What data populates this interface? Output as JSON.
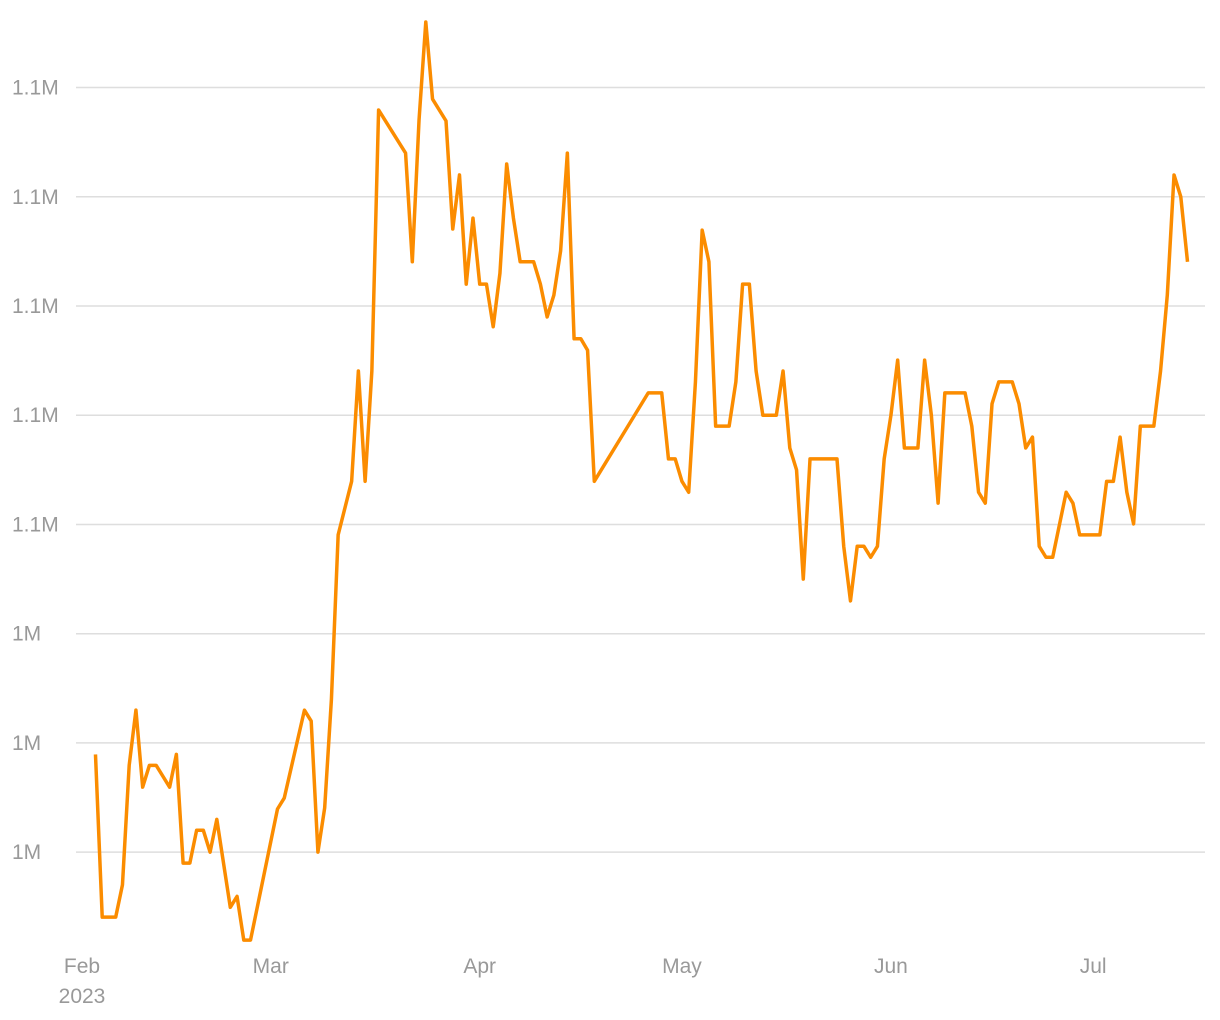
{
  "chart_data": {
    "type": "line",
    "grid": true,
    "ylim": [
      983000,
      1154200
    ],
    "yticks": [
      {
        "value": 1000000,
        "label": "1M"
      },
      {
        "value": 1020000,
        "label": "1M"
      },
      {
        "value": 1040000,
        "label": "1M"
      },
      {
        "value": 1060000,
        "label": "1.1M"
      },
      {
        "value": 1080000,
        "label": "1.1M"
      },
      {
        "value": 1100000,
        "label": "1.1M"
      },
      {
        "value": 1120000,
        "label": "1.1M"
      },
      {
        "value": 1140000,
        "label": "1.1M"
      }
    ],
    "xlim": [
      "2023-02-01",
      "2023-07-17"
    ],
    "xticks": [
      {
        "value": "2023-02-01",
        "label": "Feb",
        "sublabel": "2023"
      },
      {
        "value": "2023-03-01",
        "label": "Mar"
      },
      {
        "value": "2023-04-01",
        "label": "Apr"
      },
      {
        "value": "2023-05-01",
        "label": "May"
      },
      {
        "value": "2023-06-01",
        "label": "Jun"
      },
      {
        "value": "2023-07-01",
        "label": "Jul"
      }
    ],
    "x": [
      "2023-02-03",
      "2023-02-04",
      "2023-02-06",
      "2023-02-07",
      "2023-02-08",
      "2023-02-09",
      "2023-02-10",
      "2023-02-11",
      "2023-02-12",
      "2023-02-13",
      "2023-02-14",
      "2023-02-15",
      "2023-02-16",
      "2023-02-17",
      "2023-02-18",
      "2023-02-19",
      "2023-02-20",
      "2023-02-21",
      "2023-02-23",
      "2023-02-24",
      "2023-02-25",
      "2023-02-26",
      "2023-03-02",
      "2023-03-03",
      "2023-03-06",
      "2023-03-07",
      "2023-03-08",
      "2023-03-09",
      "2023-03-10",
      "2023-03-11",
      "2023-03-13",
      "2023-03-14",
      "2023-03-15",
      "2023-03-16",
      "2023-03-17",
      "2023-03-21",
      "2023-03-22",
      "2023-03-23",
      "2023-03-24",
      "2023-03-25",
      "2023-03-27",
      "2023-03-28",
      "2023-03-29",
      "2023-03-30",
      "2023-03-31",
      "2023-04-01",
      "2023-04-02",
      "2023-04-03",
      "2023-04-04",
      "2023-04-05",
      "2023-04-06",
      "2023-04-07",
      "2023-04-09",
      "2023-04-10",
      "2023-04-11",
      "2023-04-12",
      "2023-04-13",
      "2023-04-14",
      "2023-04-15",
      "2023-04-16",
      "2023-04-17",
      "2023-04-18",
      "2023-04-26",
      "2023-04-28",
      "2023-04-29",
      "2023-04-30",
      "2023-05-01",
      "2023-05-02",
      "2023-05-03",
      "2023-05-04",
      "2023-05-05",
      "2023-05-06",
      "2023-05-08",
      "2023-05-09",
      "2023-05-10",
      "2023-05-11",
      "2023-05-12",
      "2023-05-13",
      "2023-05-15",
      "2023-05-16",
      "2023-05-17",
      "2023-05-18",
      "2023-05-19",
      "2023-05-20",
      "2023-05-24",
      "2023-05-25",
      "2023-05-26",
      "2023-05-27",
      "2023-05-28",
      "2023-05-29",
      "2023-05-30",
      "2023-05-31",
      "2023-06-01",
      "2023-06-02",
      "2023-06-03",
      "2023-06-05",
      "2023-06-06",
      "2023-06-07",
      "2023-06-08",
      "2023-06-09",
      "2023-06-12",
      "2023-06-13",
      "2023-06-14",
      "2023-06-15",
      "2023-06-16",
      "2023-06-17",
      "2023-06-19",
      "2023-06-20",
      "2023-06-21",
      "2023-06-22",
      "2023-06-23",
      "2023-06-24",
      "2023-06-25",
      "2023-06-27",
      "2023-06-28",
      "2023-06-29",
      "2023-07-02",
      "2023-07-03",
      "2023-07-04",
      "2023-07-05",
      "2023-07-06",
      "2023-07-07",
      "2023-07-08",
      "2023-07-10",
      "2023-07-11",
      "2023-07-12",
      "2023-07-13",
      "2023-07-14",
      "2023-07-15"
    ],
    "series": [
      {
        "color": "#fb8c00",
        "values": [
          1017900,
          988100,
          988100,
          994000,
          1015900,
          1026000,
          1011900,
          1015900,
          1015900,
          1013900,
          1011900,
          1017900,
          998000,
          998000,
          1004000,
          1004000,
          1000000,
          1006000,
          989900,
          991900,
          983900,
          983900,
          1007900,
          1009900,
          1026000,
          1024000,
          1000000,
          1008100,
          1028000,
          1058100,
          1067900,
          1088100,
          1067900,
          1088100,
          1135900,
          1128000,
          1108100,
          1134100,
          1152000,
          1137900,
          1133900,
          1114100,
          1124000,
          1104000,
          1116100,
          1104000,
          1104000,
          1096200,
          1106000,
          1126000,
          1116100,
          1108100,
          1108100,
          1104000,
          1098000,
          1102000,
          1110100,
          1128000,
          1094000,
          1094000,
          1091900,
          1067900,
          1084100,
          1084100,
          1072000,
          1072000,
          1067900,
          1065900,
          1086100,
          1113900,
          1108100,
          1078000,
          1078000,
          1086100,
          1104000,
          1104000,
          1088100,
          1080000,
          1080000,
          1088100,
          1074000,
          1070000,
          1050000,
          1072000,
          1072000,
          1056000,
          1046000,
          1056000,
          1056000,
          1054000,
          1056000,
          1072000,
          1080000,
          1090100,
          1074000,
          1074000,
          1090100,
          1080000,
          1063900,
          1084100,
          1084100,
          1078000,
          1065900,
          1063900,
          1082100,
          1086100,
          1086100,
          1082100,
          1074000,
          1076000,
          1056000,
          1054000,
          1054000,
          1065900,
          1063900,
          1058100,
          1058100,
          1067900,
          1067900,
          1076000,
          1065900,
          1060100,
          1078000,
          1078000,
          1088100,
          1102000,
          1124000,
          1120000,
          1108100
        ]
      }
    ]
  }
}
